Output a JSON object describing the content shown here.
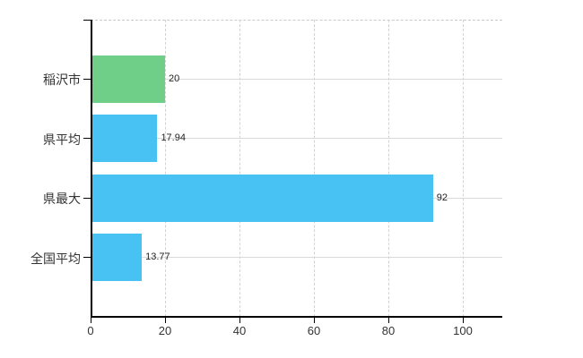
{
  "chart_data": {
    "type": "bar",
    "orientation": "horizontal",
    "title": "",
    "xlabel": "",
    "ylabel": "",
    "categories": [
      "稲沢市",
      "県平均",
      "県最大",
      "全国平均"
    ],
    "values": [
      20,
      17.94,
      92,
      13.77
    ],
    "value_labels": [
      "20",
      "17.94",
      "92",
      "13.77"
    ],
    "bar_colors": [
      "#6fce87",
      "#47c2f3",
      "#47c2f3",
      "#47c2f3"
    ],
    "x_ticks": [
      0,
      20,
      40,
      60,
      80,
      100
    ],
    "x_tick_labels": [
      "0",
      "20",
      "40",
      "60",
      "80",
      "100"
    ],
    "xlim": [
      0,
      110.6
    ],
    "grid": true,
    "legend": false,
    "colors": {
      "axis": "#000000",
      "grid_vertical": "#d2d2d2",
      "grid_horizontal": "#d9d9d9",
      "text": "#333333",
      "background": "#ffffff"
    }
  }
}
